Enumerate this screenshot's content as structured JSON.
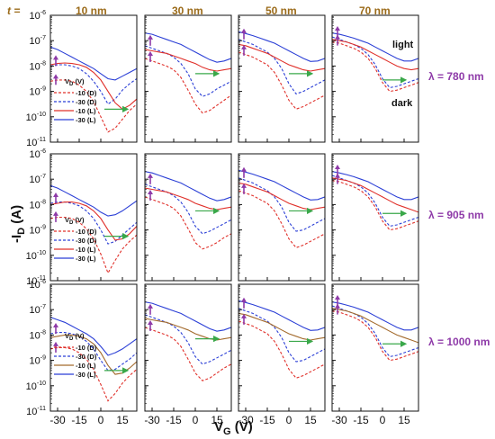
{
  "chart_data": {
    "type": "line",
    "ylabel_main": "-I",
    "ylabel_sub": "D",
    "ylabel_unit": " (A)",
    "xlabel_main": "V",
    "xlabel_sub": "G",
    "xlabel_unit": " (V)",
    "thickness_prefix": "t = ",
    "thickness_labels": [
      "10 nm",
      "30 nm",
      "50 nm",
      "70 nm"
    ],
    "wavelength_labels": [
      "λ = 780 nm",
      "λ = 905 nm",
      "λ = 1000 nm"
    ],
    "x_ticks": [
      -30,
      -15,
      0,
      15
    ],
    "x_tick_labels": [
      "-30",
      "-15",
      "0",
      "15"
    ],
    "xlim": [
      -35,
      25
    ],
    "ylog": true,
    "y_tick_exponents": [
      -6,
      -7,
      -8,
      -9,
      -10,
      -11
    ],
    "y_tick_base": "10",
    "ylim_exp": [
      -11,
      -6
    ],
    "legend": {
      "title_main": "V",
      "title_sub": "D",
      "title_unit": " (V)",
      "entries": [
        {
          "label": "-10 (D)",
          "dash": true,
          "series": "-10D"
        },
        {
          "label": "-30 (D)",
          "dash": true,
          "series": "-30D"
        },
        {
          "label": "-10 (L)",
          "dash": false,
          "series": "-10L"
        },
        {
          "label": "-30 (L)",
          "dash": false,
          "series": "-30L"
        }
      ]
    },
    "annotations": {
      "light": "light",
      "dark": "dark"
    },
    "colors": {
      "-30L": "#2b3fd6",
      "-30D": "#2b3fd6",
      "-10D": "#e0302a",
      "-10L_row1": "#e0302a",
      "-10L_row2": "#e0302a",
      "-10L_row3": "#a36a2c",
      "arrow": "#3aa84a",
      "upArrow": "#8e3aa8"
    },
    "x": [
      -35,
      -30,
      -25,
      -20,
      -15,
      -10,
      -5,
      0,
      5,
      10,
      15,
      20,
      25
    ],
    "panels": [
      {
        "row": 0,
        "col": 0,
        "series": {
          "-30L": [
            -7.25,
            -7.35,
            -7.5,
            -7.65,
            -7.8,
            -7.95,
            -8.1,
            -8.3,
            -8.5,
            -8.55,
            -8.4,
            -8.25,
            -8.1
          ],
          "-10L": [
            -7.95,
            -7.9,
            -7.88,
            -7.9,
            -7.95,
            -8.05,
            -8.25,
            -8.55,
            -9.0,
            -9.45,
            -9.7,
            -9.55,
            -9.3
          ],
          "-30D": [
            -8.0,
            -7.95,
            -7.95,
            -8.0,
            -8.1,
            -8.3,
            -8.6,
            -9.0,
            -9.5,
            -9.3,
            -8.95,
            -8.7,
            -8.5
          ],
          "-10D": [
            -8.6,
            -8.55,
            -8.55,
            -8.6,
            -8.75,
            -9.0,
            -9.4,
            -10.0,
            -10.6,
            -10.45,
            -10.1,
            -9.75,
            -9.5
          ]
        },
        "arrow_y": -9.7
      },
      {
        "row": 0,
        "col": 1,
        "series": {
          "-30L": [
            -6.7,
            -6.75,
            -6.85,
            -6.95,
            -7.05,
            -7.15,
            -7.3,
            -7.45,
            -7.6,
            -7.75,
            -7.85,
            -7.8,
            -7.7
          ],
          "-10L": [
            -7.35,
            -7.4,
            -7.45,
            -7.5,
            -7.6,
            -7.7,
            -7.8,
            -7.9,
            -8.05,
            -8.15,
            -8.2,
            -8.15,
            -8.1
          ],
          "-30D": [
            -7.2,
            -7.3,
            -7.4,
            -7.5,
            -7.65,
            -7.9,
            -8.3,
            -8.9,
            -9.2,
            -9.1,
            -8.9,
            -8.75,
            -8.6
          ],
          "-10D": [
            -7.7,
            -7.8,
            -7.9,
            -8.0,
            -8.15,
            -8.45,
            -8.95,
            -9.5,
            -9.85,
            -9.75,
            -9.55,
            -9.35,
            -9.15
          ]
        },
        "arrow_y": -8.3
      },
      {
        "row": 0,
        "col": 2,
        "series": {
          "-30L": [
            -6.65,
            -6.72,
            -6.8,
            -6.9,
            -7.0,
            -7.1,
            -7.25,
            -7.4,
            -7.55,
            -7.7,
            -7.82,
            -7.8,
            -7.7
          ],
          "-10L": [
            -7.15,
            -7.2,
            -7.3,
            -7.4,
            -7.5,
            -7.65,
            -7.8,
            -7.95,
            -8.05,
            -8.15,
            -8.2,
            -8.15,
            -8.1
          ],
          "-30D": [
            -6.95,
            -7.05,
            -7.15,
            -7.3,
            -7.45,
            -7.7,
            -8.1,
            -8.7,
            -9.1,
            -9.0,
            -8.85,
            -8.7,
            -8.55
          ],
          "-10D": [
            -7.45,
            -7.55,
            -7.65,
            -7.8,
            -7.95,
            -8.25,
            -8.75,
            -9.35,
            -9.7,
            -9.6,
            -9.45,
            -9.3,
            -9.15
          ]
        },
        "arrow_y": -8.3
      },
      {
        "row": 0,
        "col": 3,
        "series": {
          "-30L": [
            -6.7,
            -6.75,
            -6.82,
            -6.9,
            -7.0,
            -7.1,
            -7.25,
            -7.4,
            -7.55,
            -7.7,
            -7.8,
            -7.8,
            -7.7
          ],
          "-10L": [
            -6.95,
            -7.0,
            -7.05,
            -7.15,
            -7.25,
            -7.4,
            -7.55,
            -7.7,
            -7.85,
            -8.0,
            -8.1,
            -8.15,
            -8.1
          ],
          "-30D": [
            -6.85,
            -6.95,
            -7.05,
            -7.15,
            -7.3,
            -7.55,
            -7.95,
            -8.5,
            -8.85,
            -8.8,
            -8.7,
            -8.6,
            -8.5
          ],
          "-10D": [
            -7.05,
            -7.1,
            -7.2,
            -7.3,
            -7.45,
            -7.7,
            -8.1,
            -8.65,
            -9.0,
            -8.95,
            -8.85,
            -8.75,
            -8.65
          ]
        },
        "arrow_y": -8.55
      },
      {
        "row": 1,
        "col": 0,
        "series": {
          "-30L": [
            -7.25,
            -7.35,
            -7.5,
            -7.65,
            -7.8,
            -7.95,
            -8.1,
            -8.3,
            -8.45,
            -8.4,
            -8.25,
            -8.05,
            -7.85
          ],
          "-10L": [
            -8.0,
            -7.95,
            -7.9,
            -7.9,
            -7.95,
            -8.05,
            -8.25,
            -8.55,
            -9.0,
            -9.4,
            -9.35,
            -9.15,
            -8.85
          ],
          "-30D": [
            -7.95,
            -7.9,
            -7.9,
            -7.95,
            -8.05,
            -8.25,
            -8.55,
            -9.0,
            -9.55,
            -9.45,
            -9.2,
            -8.95,
            -8.7
          ],
          "-10D": [
            -8.55,
            -8.5,
            -8.5,
            -8.55,
            -8.7,
            -8.95,
            -9.35,
            -9.95,
            -10.7,
            -10.2,
            -9.75,
            -9.45,
            -9.2
          ]
        },
        "arrow_y": -9.25
      },
      {
        "row": 1,
        "col": 1,
        "series": {
          "-30L": [
            -6.7,
            -6.75,
            -6.85,
            -6.95,
            -7.05,
            -7.15,
            -7.3,
            -7.45,
            -7.6,
            -7.75,
            -7.85,
            -7.8,
            -7.7
          ],
          "-10L": [
            -7.35,
            -7.4,
            -7.45,
            -7.5,
            -7.6,
            -7.7,
            -7.8,
            -7.95,
            -8.05,
            -8.15,
            -8.2,
            -8.15,
            -8.1
          ],
          "-30D": [
            -7.2,
            -7.3,
            -7.4,
            -7.5,
            -7.65,
            -7.9,
            -8.3,
            -8.85,
            -9.15,
            -9.05,
            -8.9,
            -8.75,
            -8.6
          ],
          "-10D": [
            -7.7,
            -7.8,
            -7.9,
            -8.0,
            -8.15,
            -8.45,
            -8.95,
            -9.5,
            -9.75,
            -9.65,
            -9.5,
            -9.3,
            -9.15
          ]
        },
        "arrow_y": -8.25
      },
      {
        "row": 1,
        "col": 2,
        "series": {
          "-30L": [
            -6.65,
            -6.72,
            -6.8,
            -6.9,
            -7.0,
            -7.1,
            -7.25,
            -7.4,
            -7.55,
            -7.7,
            -7.82,
            -7.8,
            -7.7
          ],
          "-10L": [
            -7.15,
            -7.2,
            -7.3,
            -7.4,
            -7.5,
            -7.65,
            -7.8,
            -7.95,
            -8.05,
            -8.15,
            -8.2,
            -8.15,
            -8.1
          ],
          "-30D": [
            -6.95,
            -7.05,
            -7.15,
            -7.3,
            -7.45,
            -7.7,
            -8.1,
            -8.7,
            -9.05,
            -9.0,
            -8.85,
            -8.7,
            -8.55
          ],
          "-10D": [
            -7.45,
            -7.55,
            -7.65,
            -7.8,
            -7.95,
            -8.25,
            -8.75,
            -9.35,
            -9.7,
            -9.6,
            -9.45,
            -9.3,
            -9.15
          ]
        },
        "arrow_y": -8.25
      },
      {
        "row": 1,
        "col": 3,
        "series": {
          "-30L": [
            -6.7,
            -6.75,
            -6.82,
            -6.9,
            -7.0,
            -7.1,
            -7.25,
            -7.4,
            -7.55,
            -7.7,
            -7.8,
            -7.8,
            -7.7
          ],
          "-10L": [
            -6.95,
            -7.0,
            -7.05,
            -7.15,
            -7.25,
            -7.4,
            -7.55,
            -7.7,
            -7.85,
            -8.0,
            -8.1,
            -8.2,
            -8.3
          ],
          "-30D": [
            -6.85,
            -6.95,
            -7.05,
            -7.15,
            -7.3,
            -7.55,
            -7.95,
            -8.5,
            -8.85,
            -8.8,
            -8.7,
            -8.6,
            -8.5
          ],
          "-10D": [
            -7.05,
            -7.1,
            -7.2,
            -7.3,
            -7.45,
            -7.7,
            -8.1,
            -8.65,
            -9.0,
            -8.95,
            -8.85,
            -8.75,
            -8.65
          ]
        },
        "arrow_y": -8.35
      },
      {
        "row": 2,
        "col": 0,
        "series": {
          "-30L": [
            -7.3,
            -7.4,
            -7.5,
            -7.65,
            -7.8,
            -7.95,
            -8.15,
            -8.45,
            -8.8,
            -8.7,
            -8.55,
            -8.35,
            -8.15
          ],
          "-10L": [
            -8.1,
            -8.05,
            -8.0,
            -8.0,
            -8.05,
            -8.15,
            -8.35,
            -8.7,
            -9.2,
            -9.55,
            -9.5,
            -9.3,
            -9.05
          ],
          "-30D": [
            -7.95,
            -7.9,
            -7.9,
            -7.95,
            -8.05,
            -8.25,
            -8.55,
            -9.0,
            -9.4,
            -9.35,
            -9.15,
            -8.95,
            -8.7
          ],
          "-10D": [
            -8.55,
            -8.5,
            -8.5,
            -8.55,
            -8.7,
            -8.95,
            -9.35,
            -9.95,
            -10.6,
            -10.3,
            -9.9,
            -9.6,
            -9.35
          ]
        },
        "arrow_y": -9.4
      },
      {
        "row": 2,
        "col": 1,
        "series": {
          "-30L": [
            -6.7,
            -6.75,
            -6.85,
            -6.95,
            -7.05,
            -7.15,
            -7.3,
            -7.45,
            -7.6,
            -7.75,
            -7.85,
            -7.8,
            -7.7
          ],
          "-10L": [
            -7.35,
            -7.4,
            -7.45,
            -7.5,
            -7.6,
            -7.7,
            -7.8,
            -7.95,
            -8.05,
            -8.15,
            -8.2,
            -8.15,
            -8.1
          ],
          "-30D": [
            -7.2,
            -7.3,
            -7.4,
            -7.5,
            -7.65,
            -7.9,
            -8.3,
            -8.85,
            -9.15,
            -9.05,
            -8.9,
            -8.75,
            -8.6
          ],
          "-10D": [
            -7.7,
            -7.8,
            -7.9,
            -8.0,
            -8.15,
            -8.45,
            -8.95,
            -9.5,
            -9.8,
            -9.7,
            -9.5,
            -9.3,
            -9.15
          ]
        },
        "arrow_y": -8.15
      },
      {
        "row": 2,
        "col": 2,
        "series": {
          "-30L": [
            -6.65,
            -6.72,
            -6.8,
            -6.9,
            -7.0,
            -7.1,
            -7.25,
            -7.4,
            -7.55,
            -7.7,
            -7.82,
            -7.8,
            -7.7
          ],
          "-10L": [
            -7.15,
            -7.2,
            -7.3,
            -7.4,
            -7.5,
            -7.65,
            -7.8,
            -7.95,
            -8.05,
            -8.15,
            -8.2,
            -8.15,
            -8.1
          ],
          "-30D": [
            -6.95,
            -7.05,
            -7.15,
            -7.3,
            -7.45,
            -7.7,
            -8.1,
            -8.7,
            -9.05,
            -9.0,
            -8.85,
            -8.7,
            -8.55
          ],
          "-10D": [
            -7.45,
            -7.55,
            -7.65,
            -7.8,
            -7.95,
            -8.25,
            -8.75,
            -9.35,
            -9.7,
            -9.6,
            -9.45,
            -9.3,
            -9.15
          ]
        },
        "arrow_y": -8.25
      },
      {
        "row": 2,
        "col": 3,
        "series": {
          "-30L": [
            -6.7,
            -6.75,
            -6.82,
            -6.9,
            -7.0,
            -7.1,
            -7.25,
            -7.4,
            -7.55,
            -7.7,
            -7.8,
            -7.8,
            -7.7
          ],
          "-10L": [
            -6.95,
            -7.0,
            -7.05,
            -7.15,
            -7.25,
            -7.4,
            -7.55,
            -7.7,
            -7.85,
            -8.0,
            -8.1,
            -8.2,
            -8.3
          ],
          "-30D": [
            -6.85,
            -6.95,
            -7.05,
            -7.15,
            -7.3,
            -7.55,
            -7.95,
            -8.5,
            -8.85,
            -8.8,
            -8.7,
            -8.6,
            -8.5
          ],
          "-10D": [
            -7.05,
            -7.1,
            -7.2,
            -7.3,
            -7.45,
            -7.7,
            -8.1,
            -8.65,
            -9.0,
            -8.95,
            -8.85,
            -8.75,
            -8.65
          ]
        },
        "arrow_y": -8.35
      }
    ]
  }
}
